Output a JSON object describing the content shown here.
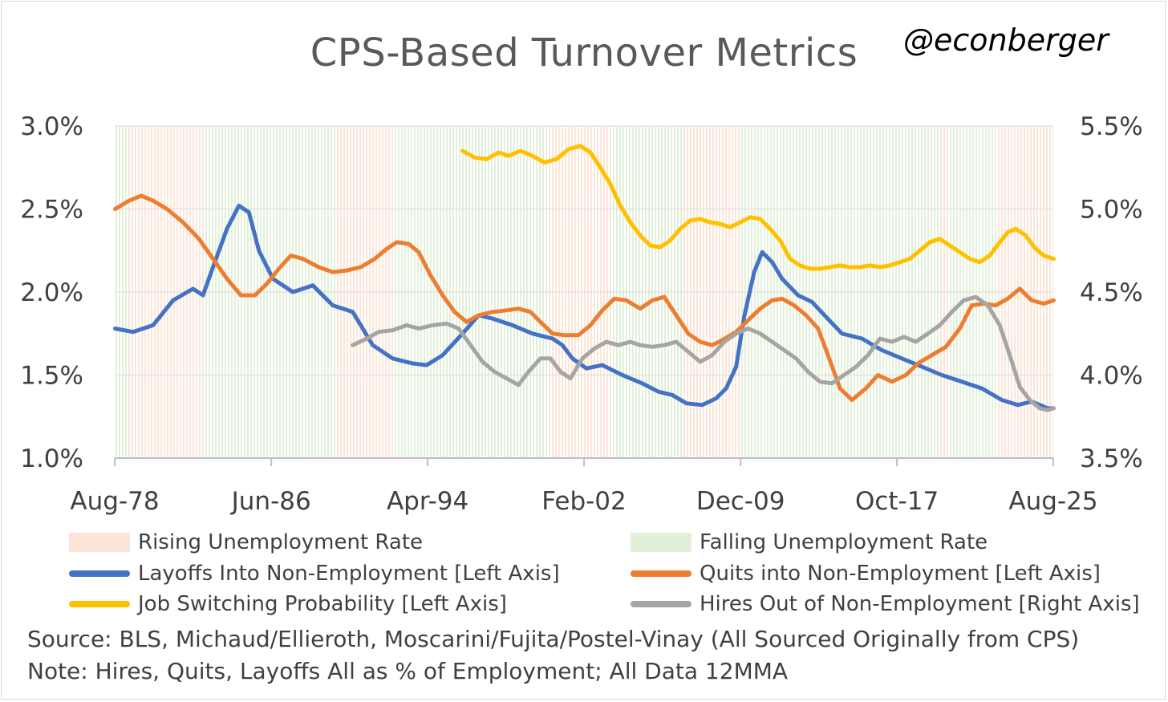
{
  "chart_data": {
    "type": "line",
    "title": "CPS-Based Turnover Metrics",
    "watermark": "@econberger",
    "x_tick_labels": [
      "Aug-78",
      "Jun-86",
      "Apr-94",
      "Feb-02",
      "Dec-09",
      "Oct-17",
      "Aug-25"
    ],
    "x_tick_years": [
      1978.58,
      1986.42,
      1994.25,
      2002.08,
      2009.92,
      2017.75,
      2025.58
    ],
    "x_range": [
      1978.58,
      2025.58
    ],
    "y_left": {
      "ticks": [
        "1.0%",
        "1.5%",
        "2.0%",
        "2.5%",
        "3.0%"
      ],
      "ylim": [
        1.0,
        3.0
      ]
    },
    "y_right": {
      "ticks": [
        "3.5%",
        "4.0%",
        "4.5%",
        "5.0%",
        "5.5%"
      ],
      "ylim": [
        3.5,
        5.5
      ]
    },
    "shading": {
      "rising_color": "#fbe5d6",
      "falling_color": "#e2f0d9",
      "rising_periods": [
        [
          1979.3,
          1983.0
        ],
        [
          1989.7,
          1992.5
        ],
        [
          2000.3,
          2003.5
        ],
        [
          2007.0,
          2009.9
        ],
        [
          2019.9,
          2020.4
        ],
        [
          2022.8,
          2025.58
        ]
      ]
    },
    "series": [
      {
        "name": "Layoffs Into Non-Employment [Left Axis]",
        "axis": "left",
        "color": "#4472c4",
        "points": [
          [
            1978.6,
            1.78
          ],
          [
            1979.5,
            1.76
          ],
          [
            1980.5,
            1.8
          ],
          [
            1981.5,
            1.95
          ],
          [
            1982.5,
            2.02
          ],
          [
            1983.0,
            1.98
          ],
          [
            1983.5,
            2.15
          ],
          [
            1984.2,
            2.38
          ],
          [
            1984.8,
            2.52
          ],
          [
            1985.3,
            2.48
          ],
          [
            1985.8,
            2.25
          ],
          [
            1986.5,
            2.08
          ],
          [
            1987.5,
            2.0
          ],
          [
            1988.5,
            2.04
          ],
          [
            1989.5,
            1.92
          ],
          [
            1990.5,
            1.88
          ],
          [
            1991.5,
            1.68
          ],
          [
            1992.5,
            1.6
          ],
          [
            1993.5,
            1.57
          ],
          [
            1994.2,
            1.56
          ],
          [
            1995.0,
            1.62
          ],
          [
            1996.0,
            1.75
          ],
          [
            1996.8,
            1.86
          ],
          [
            1997.5,
            1.84
          ],
          [
            1998.5,
            1.8
          ],
          [
            1999.5,
            1.75
          ],
          [
            2000.5,
            1.72
          ],
          [
            2001.0,
            1.68
          ],
          [
            2001.5,
            1.6
          ],
          [
            2002.2,
            1.54
          ],
          [
            2003.0,
            1.56
          ],
          [
            2004.0,
            1.5
          ],
          [
            2005.0,
            1.45
          ],
          [
            2005.8,
            1.4
          ],
          [
            2006.5,
            1.38
          ],
          [
            2007.2,
            1.33
          ],
          [
            2008.0,
            1.32
          ],
          [
            2008.7,
            1.36
          ],
          [
            2009.2,
            1.42
          ],
          [
            2009.7,
            1.55
          ],
          [
            2010.1,
            1.85
          ],
          [
            2010.6,
            2.12
          ],
          [
            2011.0,
            2.24
          ],
          [
            2011.5,
            2.18
          ],
          [
            2012.0,
            2.08
          ],
          [
            2012.8,
            1.98
          ],
          [
            2013.5,
            1.94
          ],
          [
            2014.2,
            1.85
          ],
          [
            2015.0,
            1.75
          ],
          [
            2016.0,
            1.72
          ],
          [
            2017.0,
            1.65
          ],
          [
            2018.0,
            1.6
          ],
          [
            2019.0,
            1.55
          ],
          [
            2020.0,
            1.5
          ],
          [
            2021.0,
            1.46
          ],
          [
            2022.0,
            1.42
          ],
          [
            2023.0,
            1.35
          ],
          [
            2023.8,
            1.32
          ],
          [
            2024.5,
            1.34
          ],
          [
            2025.3,
            1.3
          ],
          [
            2025.6,
            1.3
          ]
        ]
      },
      {
        "name": "Quits into Non-Employment [Left Axis]",
        "axis": "left",
        "color": "#ed7d31",
        "points": [
          [
            1978.6,
            2.5
          ],
          [
            1979.3,
            2.55
          ],
          [
            1979.9,
            2.58
          ],
          [
            1980.5,
            2.55
          ],
          [
            1981.2,
            2.5
          ],
          [
            1982.0,
            2.42
          ],
          [
            1982.8,
            2.32
          ],
          [
            1983.5,
            2.2
          ],
          [
            1984.2,
            2.08
          ],
          [
            1984.9,
            1.98
          ],
          [
            1985.6,
            1.98
          ],
          [
            1986.2,
            2.05
          ],
          [
            1986.8,
            2.14
          ],
          [
            1987.4,
            2.22
          ],
          [
            1988.0,
            2.2
          ],
          [
            1988.8,
            2.15
          ],
          [
            1989.5,
            2.12
          ],
          [
            1990.2,
            2.13
          ],
          [
            1990.9,
            2.15
          ],
          [
            1991.6,
            2.2
          ],
          [
            1992.2,
            2.26
          ],
          [
            1992.7,
            2.3
          ],
          [
            1993.3,
            2.29
          ],
          [
            1993.8,
            2.24
          ],
          [
            1994.4,
            2.1
          ],
          [
            1995.0,
            1.98
          ],
          [
            1995.6,
            1.88
          ],
          [
            1996.2,
            1.82
          ],
          [
            1996.8,
            1.86
          ],
          [
            1997.5,
            1.88
          ],
          [
            1998.2,
            1.89
          ],
          [
            1998.8,
            1.9
          ],
          [
            1999.4,
            1.88
          ],
          [
            1999.9,
            1.82
          ],
          [
            2000.5,
            1.75
          ],
          [
            2001.1,
            1.74
          ],
          [
            2001.8,
            1.74
          ],
          [
            2002.4,
            1.8
          ],
          [
            2003.0,
            1.89
          ],
          [
            2003.6,
            1.96
          ],
          [
            2004.2,
            1.95
          ],
          [
            2004.9,
            1.9
          ],
          [
            2005.5,
            1.95
          ],
          [
            2006.1,
            1.97
          ],
          [
            2006.7,
            1.86
          ],
          [
            2007.3,
            1.75
          ],
          [
            2007.9,
            1.7
          ],
          [
            2008.5,
            1.68
          ],
          [
            2009.0,
            1.71
          ],
          [
            2009.7,
            1.76
          ],
          [
            2010.3,
            1.83
          ],
          [
            2010.9,
            1.9
          ],
          [
            2011.5,
            1.95
          ],
          [
            2012.0,
            1.96
          ],
          [
            2012.6,
            1.92
          ],
          [
            2013.2,
            1.86
          ],
          [
            2013.8,
            1.78
          ],
          [
            2014.3,
            1.62
          ],
          [
            2014.9,
            1.42
          ],
          [
            2015.5,
            1.35
          ],
          [
            2016.2,
            1.42
          ],
          [
            2016.8,
            1.5
          ],
          [
            2017.5,
            1.46
          ],
          [
            2018.2,
            1.5
          ],
          [
            2018.8,
            1.57
          ],
          [
            2019.5,
            1.62
          ],
          [
            2020.2,
            1.67
          ],
          [
            2020.9,
            1.78
          ],
          [
            2021.5,
            1.92
          ],
          [
            2022.1,
            1.93
          ],
          [
            2022.7,
            1.92
          ],
          [
            2023.3,
            1.96
          ],
          [
            2023.9,
            2.02
          ],
          [
            2024.5,
            1.95
          ],
          [
            2025.1,
            1.93
          ],
          [
            2025.6,
            1.95
          ]
        ]
      },
      {
        "name": "Job Switching Probability [Left Axis]",
        "axis": "left",
        "color": "#ffc000",
        "points": [
          [
            1996.0,
            2.85
          ],
          [
            1996.6,
            2.81
          ],
          [
            1997.2,
            2.8
          ],
          [
            1997.8,
            2.84
          ],
          [
            1998.3,
            2.82
          ],
          [
            1998.9,
            2.85
          ],
          [
            1999.5,
            2.82
          ],
          [
            2000.1,
            2.78
          ],
          [
            2000.7,
            2.8
          ],
          [
            2001.3,
            2.86
          ],
          [
            2001.9,
            2.88
          ],
          [
            2002.4,
            2.84
          ],
          [
            2002.9,
            2.75
          ],
          [
            2003.4,
            2.65
          ],
          [
            2003.9,
            2.52
          ],
          [
            2004.4,
            2.42
          ],
          [
            2004.9,
            2.34
          ],
          [
            2005.4,
            2.28
          ],
          [
            2005.9,
            2.27
          ],
          [
            2006.4,
            2.31
          ],
          [
            2006.9,
            2.38
          ],
          [
            2007.4,
            2.43
          ],
          [
            2007.9,
            2.44
          ],
          [
            2008.4,
            2.42
          ],
          [
            2008.9,
            2.41
          ],
          [
            2009.4,
            2.39
          ],
          [
            2009.9,
            2.42
          ],
          [
            2010.4,
            2.45
          ],
          [
            2010.9,
            2.44
          ],
          [
            2011.4,
            2.38
          ],
          [
            2011.9,
            2.31
          ],
          [
            2012.4,
            2.2
          ],
          [
            2012.9,
            2.16
          ],
          [
            2013.4,
            2.14
          ],
          [
            2013.9,
            2.14
          ],
          [
            2014.4,
            2.15
          ],
          [
            2014.9,
            2.16
          ],
          [
            2015.4,
            2.15
          ],
          [
            2015.9,
            2.15
          ],
          [
            2016.4,
            2.16
          ],
          [
            2016.9,
            2.15
          ],
          [
            2017.4,
            2.16
          ],
          [
            2017.9,
            2.18
          ],
          [
            2018.4,
            2.2
          ],
          [
            2018.9,
            2.25
          ],
          [
            2019.4,
            2.3
          ],
          [
            2019.9,
            2.32
          ],
          [
            2020.4,
            2.28
          ],
          [
            2020.9,
            2.24
          ],
          [
            2021.4,
            2.2
          ],
          [
            2021.9,
            2.18
          ],
          [
            2022.4,
            2.22
          ],
          [
            2022.9,
            2.3
          ],
          [
            2023.3,
            2.36
          ],
          [
            2023.7,
            2.38
          ],
          [
            2024.2,
            2.34
          ],
          [
            2024.7,
            2.26
          ],
          [
            2025.1,
            2.22
          ],
          [
            2025.6,
            2.2
          ]
        ]
      },
      {
        "name": "Hires Out of Non-Employment [Right Axis]",
        "axis": "right",
        "color": "#a5a5a5",
        "points": [
          [
            1990.5,
            4.18
          ],
          [
            1991.2,
            4.22
          ],
          [
            1991.8,
            4.26
          ],
          [
            1992.5,
            4.27
          ],
          [
            1993.2,
            4.3
          ],
          [
            1993.8,
            4.28
          ],
          [
            1994.5,
            4.3
          ],
          [
            1995.2,
            4.31
          ],
          [
            1995.8,
            4.28
          ],
          [
            1996.4,
            4.18
          ],
          [
            1997.0,
            4.08
          ],
          [
            1997.6,
            4.02
          ],
          [
            1998.2,
            3.98
          ],
          [
            1998.8,
            3.94
          ],
          [
            1999.3,
            4.02
          ],
          [
            1999.9,
            4.1
          ],
          [
            2000.4,
            4.1
          ],
          [
            2000.9,
            4.02
          ],
          [
            2001.4,
            3.98
          ],
          [
            2002.0,
            4.1
          ],
          [
            2002.6,
            4.16
          ],
          [
            2003.2,
            4.2
          ],
          [
            2003.8,
            4.18
          ],
          [
            2004.4,
            4.2
          ],
          [
            2004.9,
            4.18
          ],
          [
            2005.5,
            4.17
          ],
          [
            2006.1,
            4.18
          ],
          [
            2006.7,
            4.2
          ],
          [
            2007.3,
            4.14
          ],
          [
            2007.9,
            4.08
          ],
          [
            2008.5,
            4.12
          ],
          [
            2009.1,
            4.2
          ],
          [
            2009.7,
            4.25
          ],
          [
            2010.3,
            4.28
          ],
          [
            2010.9,
            4.25
          ],
          [
            2011.5,
            4.2
          ],
          [
            2012.1,
            4.15
          ],
          [
            2012.7,
            4.1
          ],
          [
            2013.3,
            4.02
          ],
          [
            2013.9,
            3.96
          ],
          [
            2014.5,
            3.95
          ],
          [
            2015.1,
            4.0
          ],
          [
            2015.7,
            4.05
          ],
          [
            2016.3,
            4.12
          ],
          [
            2016.9,
            4.22
          ],
          [
            2017.5,
            4.2
          ],
          [
            2018.1,
            4.23
          ],
          [
            2018.7,
            4.2
          ],
          [
            2019.3,
            4.25
          ],
          [
            2019.9,
            4.3
          ],
          [
            2020.5,
            4.38
          ],
          [
            2021.1,
            4.45
          ],
          [
            2021.7,
            4.47
          ],
          [
            2022.3,
            4.42
          ],
          [
            2022.9,
            4.3
          ],
          [
            2023.4,
            4.12
          ],
          [
            2023.9,
            3.93
          ],
          [
            2024.4,
            3.85
          ],
          [
            2024.9,
            3.8
          ],
          [
            2025.3,
            3.79
          ],
          [
            2025.6,
            3.8
          ]
        ]
      }
    ],
    "legend": [
      {
        "label": "Rising Unemployment Rate",
        "kind": "box",
        "color": "#fbe5d6"
      },
      {
        "label": "Falling Unemployment Rate",
        "kind": "box",
        "color": "#e2f0d9"
      },
      {
        "label": "Layoffs Into Non-Employment [Left Axis]",
        "kind": "line",
        "color": "#4472c4"
      },
      {
        "label": "Quits into Non-Employment [Left Axis]",
        "kind": "line",
        "color": "#ed7d31"
      },
      {
        "label": "Job Switching Probability [Left Axis]",
        "kind": "line",
        "color": "#ffc000"
      },
      {
        "label": "Hires Out of Non-Employment [Right Axis]",
        "kind": "line",
        "color": "#a5a5a5"
      }
    ],
    "source": "Source: BLS, Michaud/Ellieroth, Moscarini/Fujita/Postel-Vinay (All Sourced Originally from CPS)",
    "note": "Note: Hires, Quits, Layoffs All as % of Employment; All Data 12MMA"
  }
}
